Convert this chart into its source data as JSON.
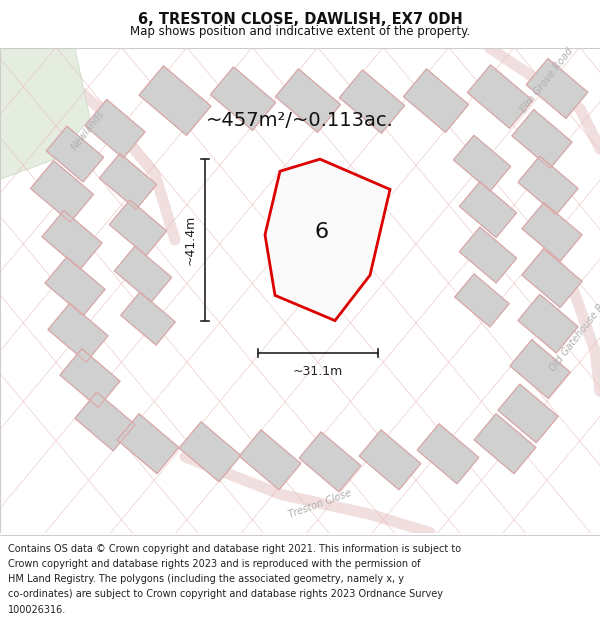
{
  "title": "6, TRESTON CLOSE, DAWLISH, EX7 0DH",
  "subtitle": "Map shows position and indicative extent of the property.",
  "footer_line1": "Contains OS data © Crown copyright and database right 2021. This information is subject to",
  "footer_line2": "Crown copyright and database rights 2023 and is reproduced with the permission of",
  "footer_line3": "HM Land Registry. The polygons (including the associated geometry, namely x, y",
  "footer_line4": "co-ordinates) are subject to Crown copyright and database rights 2023 Ordnance Survey",
  "footer_line5": "100026316.",
  "area_label": "~457m²/~0.113ac.",
  "width_label": "~31.1m",
  "height_label": "~41.4m",
  "plot_number": "6",
  "map_bg": "#f2eeee",
  "plot_fill": "#ffffff",
  "plot_edge": "#dd0000",
  "building_fill": "#d0d0d0",
  "building_edge": "#b0b0b0",
  "plot_outline_color": "#e8b0b0",
  "road_color": "#e8b8b8",
  "dim_color": "#222222",
  "label_color": "#b0b0b0",
  "green_fill": "#e4ede0",
  "title_fontsize": 10.5,
  "subtitle_fontsize": 8.5,
  "footer_fontsize": 7.0,
  "area_fontsize": 14,
  "dim_fontsize": 9,
  "plot_label_fontsize": 16,
  "road_label_fontsize": 7
}
